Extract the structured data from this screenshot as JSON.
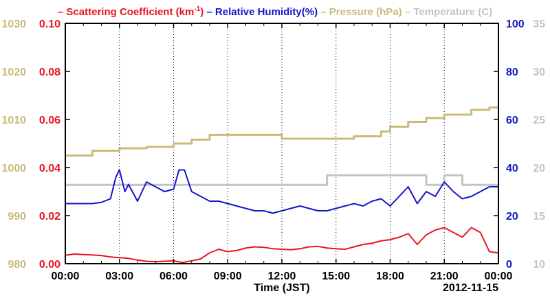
{
  "colors": {
    "scattering": "#e8141c",
    "humidity": "#1414cc",
    "pressure": "#c8bc78",
    "temperature": "#c4c4c4",
    "frame": "#000000"
  },
  "legend": {
    "items": [
      {
        "dash": "–",
        "text": "Scattering Coefficient (km",
        "sup": "-1",
        "tail": ")",
        "color_key": "scattering"
      },
      {
        "dash": "–",
        "text": "Relative Humidity(%)",
        "sup": "",
        "tail": "",
        "color_key": "humidity"
      },
      {
        "dash": "–",
        "text": "Pressure (hPa)",
        "sup": "",
        "tail": "",
        "color_key": "pressure"
      },
      {
        "dash": "–",
        "text": "Temperature (",
        "sup": "",
        "tail": "C)",
        "color_key": "temperature"
      }
    ]
  },
  "chart_data": {
    "type": "line",
    "xlabel": "Time (JST)",
    "date_label": "2012-11-15",
    "x_range_hours": [
      0,
      24
    ],
    "x_ticks": [
      "00:00",
      "03:00",
      "06:00",
      "09:00",
      "12:00",
      "15:00",
      "18:00",
      "21:00",
      "00:00"
    ],
    "grid": "vertical dotted at 3-hour intervals",
    "axes": {
      "pressure": {
        "side": "left-outer",
        "range": [
          980,
          1030
        ],
        "ticks": [
          "980",
          "990",
          "1000",
          "1010",
          "1020",
          "1030"
        ]
      },
      "scattering": {
        "side": "left-inner",
        "range": [
          0.0,
          0.1
        ],
        "ticks": [
          "0.00",
          "0.02",
          "0.04",
          "0.06",
          "0.08",
          "0.10"
        ]
      },
      "humidity": {
        "side": "right-inner",
        "range": [
          0,
          100
        ],
        "ticks": [
          "0",
          "20",
          "40",
          "60",
          "80",
          "100"
        ]
      },
      "temperature": {
        "side": "right-outer",
        "range": [
          10,
          35
        ],
        "ticks": [
          "10",
          "15",
          "20",
          "25",
          "30",
          "35"
        ]
      }
    },
    "series": [
      {
        "name": "Scattering Coefficient (km-1)",
        "axis": "scattering",
        "color_key": "scattering",
        "x": [
          0,
          0.5,
          1,
          1.5,
          2,
          2.5,
          3,
          3.5,
          4,
          4.5,
          5,
          5.5,
          6,
          6.5,
          7,
          7.5,
          8,
          8.5,
          9,
          9.5,
          10,
          10.5,
          11,
          11.5,
          12,
          12.5,
          13,
          13.5,
          14,
          14.5,
          15,
          15.5,
          16,
          16.5,
          17,
          17.5,
          18,
          18.5,
          19,
          19.5,
          20,
          20.5,
          21,
          21.5,
          22,
          22.5,
          23,
          23.5,
          24
        ],
        "y": [
          0.0035,
          0.004,
          0.0038,
          0.0036,
          0.0034,
          0.0028,
          0.0025,
          0.0022,
          0.0015,
          0.001,
          0.0008,
          0.001,
          0.0012,
          0.0005,
          0.0012,
          0.002,
          0.0045,
          0.006,
          0.005,
          0.0055,
          0.0065,
          0.007,
          0.0068,
          0.0062,
          0.006,
          0.0058,
          0.0062,
          0.007,
          0.0072,
          0.0065,
          0.0062,
          0.006,
          0.007,
          0.008,
          0.0085,
          0.0095,
          0.01,
          0.011,
          0.0125,
          0.008,
          0.012,
          0.014,
          0.015,
          0.013,
          0.011,
          0.015,
          0.013,
          0.005,
          0.0045
        ]
      },
      {
        "name": "Relative Humidity(%)",
        "axis": "humidity",
        "color_key": "humidity",
        "x": [
          0,
          0.5,
          1,
          1.5,
          2,
          2.5,
          2.8,
          3,
          3.3,
          3.5,
          4,
          4.5,
          5,
          5.5,
          6,
          6.3,
          6.6,
          7,
          7.5,
          8,
          8.5,
          9,
          9.5,
          10,
          10.5,
          11,
          11.5,
          12,
          12.5,
          13,
          13.5,
          14,
          14.5,
          15,
          15.5,
          16,
          16.5,
          17,
          17.5,
          18,
          18.5,
          19,
          19.5,
          20,
          20.5,
          21,
          21.5,
          22,
          22.5,
          23,
          23.5,
          24
        ],
        "y": [
          25,
          25,
          25,
          25,
          25.5,
          27,
          36,
          39,
          30,
          33,
          26,
          34,
          32,
          30,
          31,
          39,
          39,
          30,
          28,
          26,
          26,
          25,
          24,
          23,
          22,
          22,
          21,
          22,
          23,
          24,
          23,
          22,
          22,
          23,
          24,
          25,
          24,
          26,
          27,
          24,
          28,
          32,
          25,
          30,
          28,
          34,
          30,
          27,
          28,
          30,
          32,
          32
        ]
      },
      {
        "name": "Pressure (hPa)",
        "axis": "pressure",
        "color_key": "pressure",
        "step": true,
        "x": [
          0,
          1.5,
          3,
          4.5,
          6,
          7,
          8,
          12,
          14.5,
          16,
          17.5,
          18,
          19,
          20,
          21,
          22.5,
          23.5,
          24
        ],
        "y": [
          1002.5,
          1003.5,
          1004.0,
          1004.3,
          1005.0,
          1005.8,
          1006.8,
          1006.0,
          1006.0,
          1006.5,
          1007.5,
          1008.5,
          1009.5,
          1010.3,
          1011.0,
          1012.0,
          1012.5,
          1012.5
        ]
      },
      {
        "name": "Temperature (C)",
        "axis": "temperature",
        "color_key": "temperature",
        "step": true,
        "x": [
          0,
          2,
          4,
          6,
          8,
          10,
          12,
          14,
          14.5,
          16,
          18,
          20,
          21,
          22,
          23.5,
          24
        ],
        "y": [
          18.2,
          18.2,
          18.2,
          18.2,
          18.2,
          18.2,
          18.2,
          18.2,
          19.2,
          19.2,
          19.2,
          18.2,
          19.2,
          18.2,
          18.2,
          18.2
        ]
      }
    ]
  }
}
